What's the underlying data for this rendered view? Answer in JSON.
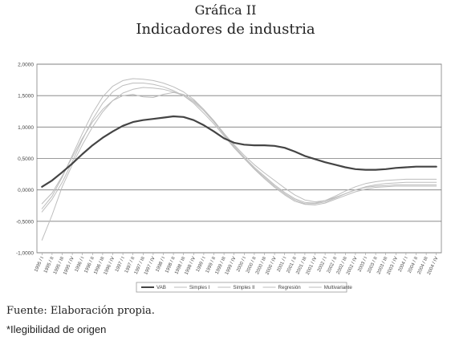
{
  "figure": {
    "label": "Gráfica II",
    "title": "Indicadores de industria"
  },
  "source_note": "Fuente: Elaboración propia.",
  "footnote": "*Ilegibilidad de origen",
  "colors": {
    "vab": "#444444",
    "gray_series": "#bdbdbd",
    "grid": "#7a7a7a",
    "plot_bg": "#ffffff"
  },
  "chart_data": {
    "type": "line",
    "ylim": [
      -1.0,
      2.0
    ],
    "yticks": [
      "-1,0000",
      "-0,5000",
      "0,0000",
      "0,5000",
      "1,0000",
      "1,5000",
      "2,0000"
    ],
    "grid": true,
    "legend_position": "bottom",
    "categories": [
      "1995 / I",
      "1995 / II",
      "1995 / III",
      "1995 / IV",
      "1996 / I",
      "1996 / II",
      "1996 / III",
      "1996 / IV",
      "1997 / I",
      "1997 / II",
      "1997 / III",
      "1997 / IV",
      "1998 / I",
      "1998 / II",
      "1998 / III",
      "1998 / IV",
      "1999 / I",
      "1999 / II",
      "1999 / III",
      "1999 / IV",
      "2000 / I",
      "2000 / II",
      "2000 / III",
      "2000 / IV",
      "2001 / I",
      "2001 / II",
      "2001 / III",
      "2001 / IV",
      "2002 / I",
      "2002 / II",
      "2002 / III",
      "2002 / IV",
      "2003 / I",
      "2003 / II",
      "2003 / III",
      "2003 / IV",
      "2004 / I",
      "2004 / II",
      "2004 / III",
      "2004 / IV"
    ],
    "series": [
      {
        "name": "VAB",
        "emphasis": true,
        "values": [
          0.05,
          0.15,
          0.28,
          0.42,
          0.57,
          0.71,
          0.83,
          0.93,
          1.02,
          1.08,
          1.11,
          1.13,
          1.15,
          1.17,
          1.16,
          1.11,
          1.03,
          0.93,
          0.82,
          0.75,
          0.72,
          0.71,
          0.71,
          0.7,
          0.67,
          0.61,
          0.54,
          0.49,
          0.44,
          0.4,
          0.36,
          0.33,
          0.32,
          0.32,
          0.33,
          0.35,
          0.36,
          0.37,
          0.37,
          0.37
        ]
      },
      {
        "name": "Simples I",
        "values": [
          -0.3,
          -0.1,
          0.2,
          0.55,
          0.9,
          1.22,
          1.48,
          1.65,
          1.74,
          1.77,
          1.76,
          1.74,
          1.7,
          1.64,
          1.56,
          1.44,
          1.28,
          1.1,
          0.9,
          0.7,
          0.52,
          0.36,
          0.22,
          0.08,
          -0.04,
          -0.14,
          -0.2,
          -0.21,
          -0.17,
          -0.1,
          -0.02,
          0.05,
          0.1,
          0.13,
          0.15,
          0.16,
          0.17,
          0.17,
          0.17,
          0.17
        ]
      },
      {
        "name": "Simples II",
        "values": [
          -0.22,
          -0.05,
          0.22,
          0.52,
          0.82,
          1.08,
          1.28,
          1.42,
          1.5,
          1.52,
          1.48,
          1.47,
          1.52,
          1.55,
          1.52,
          1.42,
          1.28,
          1.1,
          0.9,
          0.72,
          0.55,
          0.4,
          0.27,
          0.15,
          0.03,
          -0.08,
          -0.16,
          -0.19,
          -0.17,
          -0.12,
          -0.06,
          0.0,
          0.05,
          0.08,
          0.1,
          0.11,
          0.12,
          0.12,
          0.12,
          0.12
        ]
      },
      {
        "name": "Regresión",
        "values": [
          -0.35,
          -0.15,
          0.12,
          0.45,
          0.8,
          1.12,
          1.38,
          1.56,
          1.66,
          1.7,
          1.7,
          1.68,
          1.64,
          1.58,
          1.5,
          1.38,
          1.22,
          1.05,
          0.86,
          0.67,
          0.5,
          0.34,
          0.2,
          0.06,
          -0.06,
          -0.16,
          -0.22,
          -0.22,
          -0.19,
          -0.13,
          -0.06,
          0.0,
          0.04,
          0.06,
          0.07,
          0.08,
          0.08,
          0.08,
          0.08,
          0.08
        ]
      },
      {
        "name": "Multivariante",
        "values": [
          -0.8,
          -0.4,
          0.05,
          0.4,
          0.72,
          1.0,
          1.24,
          1.42,
          1.54,
          1.6,
          1.63,
          1.62,
          1.6,
          1.56,
          1.5,
          1.4,
          1.26,
          1.08,
          0.88,
          0.68,
          0.5,
          0.33,
          0.18,
          0.04,
          -0.08,
          -0.18,
          -0.23,
          -0.24,
          -0.21,
          -0.15,
          -0.09,
          -0.03,
          0.01,
          0.04,
          0.05,
          0.06,
          0.06,
          0.06,
          0.06,
          0.06
        ]
      }
    ]
  }
}
